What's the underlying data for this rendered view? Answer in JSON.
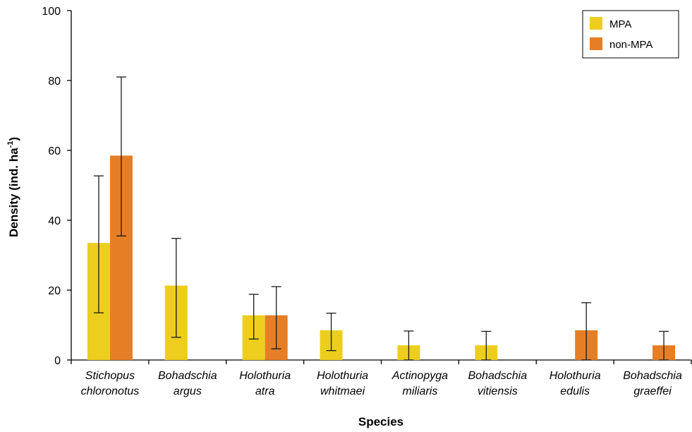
{
  "chart_data": {
    "type": "bar",
    "title": "",
    "xlabel": "Species",
    "ylabel_main": "Density (ind. ha",
    "ylabel_sup": "-1",
    "ylabel_close": ")",
    "ylim": [
      0,
      100
    ],
    "yticks": [
      "0",
      "20",
      "40",
      "60",
      "80",
      "100"
    ],
    "categories": [
      {
        "line1": "Stichopus",
        "line2": "chloronotus"
      },
      {
        "line1": "Bohadschia",
        "line2": "argus"
      },
      {
        "line1": "Holothuria",
        "line2": "atra"
      },
      {
        "line1": "Holothuria",
        "line2": "whitmaei"
      },
      {
        "line1": "Actinopyga",
        "line2": "miliaris"
      },
      {
        "line1": "Bohadschia",
        "line2": "vitiensis"
      },
      {
        "line1": "Holothuria",
        "line2": "edulis"
      },
      {
        "line1": "Bohadschia",
        "line2": "graeffei"
      }
    ],
    "series": [
      {
        "name": "MPA",
        "color": "#EDCE1E",
        "values": [
          33.5,
          21.3,
          12.8,
          8.5,
          4.2,
          4.2,
          0,
          0
        ],
        "err_low": [
          13.5,
          6.5,
          6.0,
          2.7,
          0,
          0,
          0,
          0
        ],
        "err_high": [
          52.7,
          34.8,
          18.8,
          13.4,
          8.3,
          8.2,
          0,
          0
        ]
      },
      {
        "name": "non-MPA",
        "color": "#E67E25",
        "values": [
          58.5,
          0,
          12.8,
          0,
          0,
          0,
          8.5,
          4.2
        ],
        "err_low": [
          35.5,
          0,
          3.2,
          0,
          0,
          0,
          0,
          0
        ],
        "err_high": [
          81.0,
          0,
          21.0,
          0,
          0,
          0,
          16.4,
          8.2
        ]
      }
    ],
    "legend_position": "top-right",
    "grid": false
  }
}
